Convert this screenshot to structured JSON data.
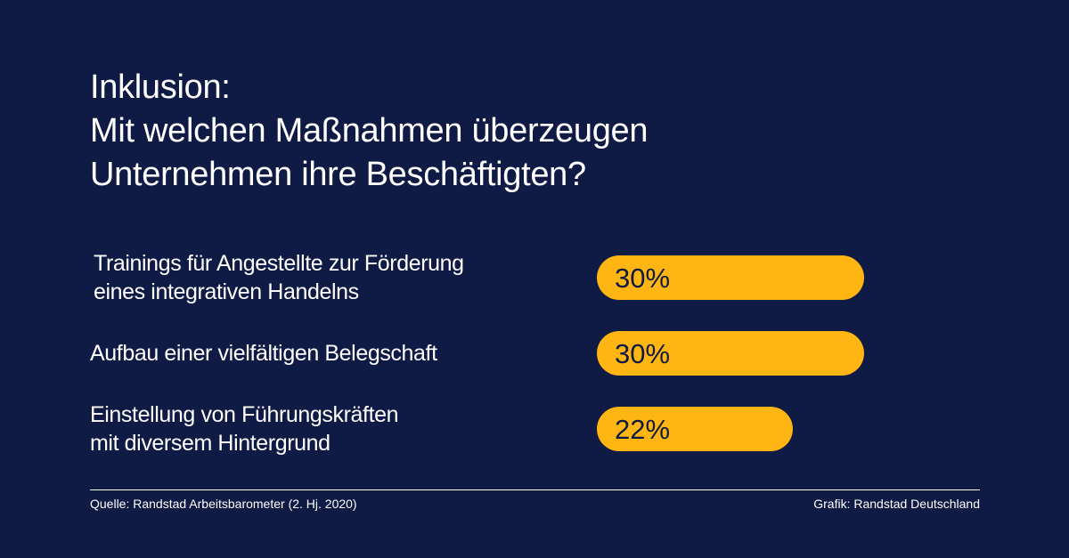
{
  "title": {
    "line1": "Inklusion:",
    "line2": "Mit welchen Maßnahmen überzeugen",
    "line3": "Unternehmen ihre Beschäftigten?"
  },
  "colors": {
    "background": "#0f1a45",
    "bar": "#ffb612",
    "text": "#ffffff"
  },
  "chart_data": {
    "type": "bar",
    "orientation": "horizontal",
    "title": "Inklusion: Mit welchen Maßnahmen überzeugen Unternehmen ihre Beschäftigten?",
    "categories": [
      [
        "Trainings für Angestellte zur Förderung",
        "eines integrativen Handelns"
      ],
      [
        "Aufbau einer vielfältigen Belegschaft"
      ],
      [
        "Einstellung von Führungskräften",
        "mit diversem Hintergrund"
      ]
    ],
    "values": [
      30,
      30,
      22
    ],
    "value_labels": [
      "30%",
      "30%",
      "22%"
    ],
    "unit": "%",
    "grid": false
  },
  "footer": {
    "source": "Quelle: Randstad Arbeitsbarometer (2. Hj. 2020)",
    "credit": "Grafik: Randstad Deutschland"
  }
}
